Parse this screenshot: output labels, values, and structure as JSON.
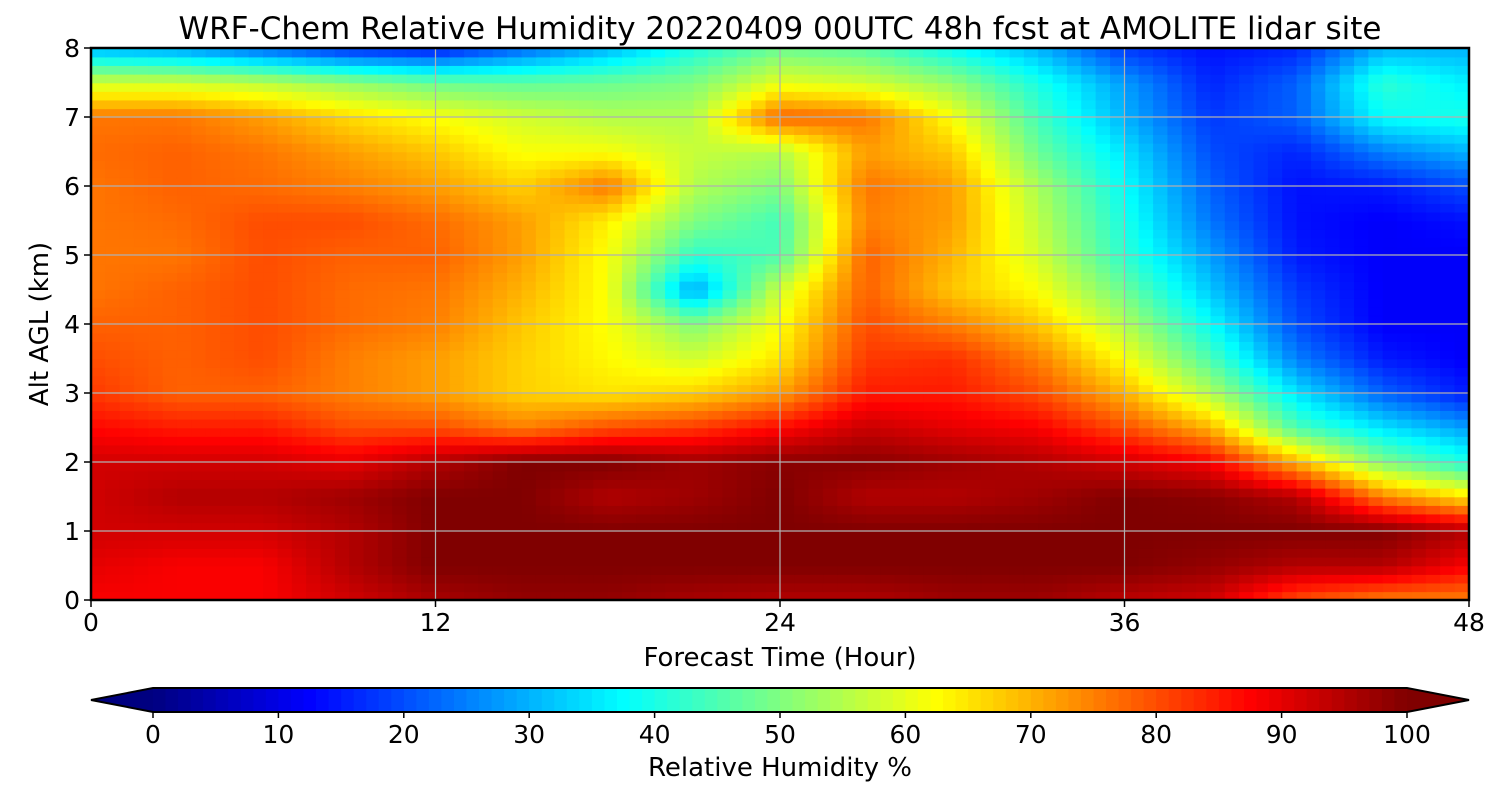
{
  "chart_data": {
    "type": "heatmap",
    "title": "WRF-Chem Relative Humidity 20220409 00UTC 48h fcst at AMOLITE lidar site",
    "xlabel": "Forecast Time (Hour)",
    "ylabel": "Alt AGL (km)",
    "xlim": [
      0,
      48
    ],
    "ylim": [
      0,
      8
    ],
    "x_ticks": [
      "0",
      "12",
      "24",
      "36",
      "48"
    ],
    "y_ticks": [
      "0",
      "1",
      "2",
      "3",
      "4",
      "5",
      "6",
      "7",
      "8"
    ],
    "grid": true,
    "colormap": "jet",
    "x": [
      0,
      3,
      6,
      9,
      12,
      15,
      18,
      21,
      24,
      27,
      30,
      33,
      36,
      39,
      42,
      45,
      48
    ],
    "y": [
      0,
      0.5,
      1,
      1.5,
      2,
      2.5,
      3,
      3.5,
      4,
      4.5,
      5,
      5.5,
      6,
      6.5,
      7,
      7.5,
      8
    ],
    "z": [
      [
        88,
        88,
        88,
        92,
        96,
        98,
        98,
        96,
        95,
        95,
        97,
        97,
        94,
        92,
        80,
        75,
        75
      ],
      [
        90,
        88,
        88,
        95,
        100,
        100,
        100,
        100,
        100,
        100,
        100,
        100,
        100,
        98,
        95,
        95,
        88
      ],
      [
        92,
        92,
        92,
        95,
        100,
        100,
        100,
        100,
        100,
        100,
        100,
        100,
        100,
        100,
        100,
        100,
        95
      ],
      [
        92,
        95,
        95,
        97,
        100,
        100,
        95,
        97,
        100,
        95,
        95,
        97,
        100,
        99,
        95,
        75,
        65
      ],
      [
        92,
        92,
        92,
        90,
        95,
        100,
        100,
        97,
        99,
        99,
        97,
        95,
        92,
        88,
        70,
        50,
        40
      ],
      [
        87,
        85,
        85,
        80,
        80,
        75,
        80,
        82,
        87,
        93,
        90,
        88,
        80,
        70,
        45,
        35,
        28
      ],
      [
        82,
        78,
        78,
        75,
        72,
        67,
        65,
        67,
        72,
        85,
        85,
        80,
        70,
        55,
        35,
        22,
        15
      ],
      [
        80,
        78,
        80,
        75,
        72,
        67,
        63,
        58,
        65,
        82,
        83,
        75,
        62,
        45,
        25,
        15,
        12
      ],
      [
        78,
        78,
        80,
        77,
        75,
        68,
        62,
        50,
        62,
        80,
        75,
        68,
        55,
        38,
        20,
        12,
        12
      ],
      [
        76,
        78,
        80,
        77,
        76,
        70,
        62,
        28,
        58,
        78,
        68,
        62,
        48,
        32,
        18,
        12,
        12
      ],
      [
        76,
        76,
        80,
        78,
        78,
        72,
        62,
        42,
        45,
        78,
        70,
        58,
        42,
        28,
        15,
        12,
        12
      ],
      [
        76,
        77,
        80,
        80,
        77,
        72,
        64,
        50,
        44,
        75,
        72,
        56,
        40,
        24,
        14,
        12,
        14
      ],
      [
        76,
        78,
        77,
        75,
        72,
        67,
        76,
        55,
        50,
        76,
        72,
        54,
        38,
        22,
        14,
        15,
        20
      ],
      [
        77,
        78,
        76,
        72,
        68,
        62,
        62,
        57,
        55,
        72,
        68,
        48,
        35,
        20,
        16,
        25,
        30
      ],
      [
        76,
        76,
        72,
        66,
        62,
        58,
        55,
        55,
        78,
        76,
        62,
        44,
        30,
        18,
        22,
        38,
        40
      ],
      [
        58,
        58,
        56,
        52,
        48,
        47,
        48,
        50,
        60,
        58,
        52,
        40,
        28,
        16,
        22,
        42,
        36
      ],
      [
        30,
        28,
        22,
        16,
        14,
        22,
        30,
        40,
        48,
        46,
        38,
        30,
        18,
        14,
        16,
        30,
        30
      ]
    ],
    "colorbar": {
      "label": "Relative Humidity %",
      "ticks": [
        "0",
        "10",
        "20",
        "30",
        "40",
        "50",
        "60",
        "70",
        "80",
        "90",
        "100"
      ],
      "range": [
        0,
        100
      ],
      "extend": "both"
    }
  }
}
